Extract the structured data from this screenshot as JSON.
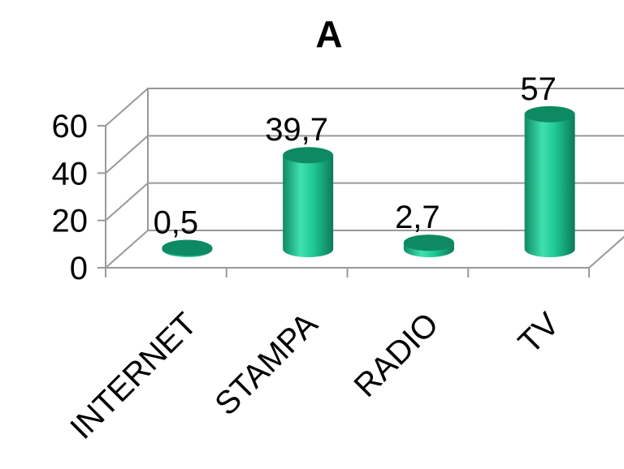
{
  "chart_data": {
    "type": "bar",
    "style": "3d-cylinder",
    "title": "A",
    "categories": [
      "INTERNET",
      "STAMPA",
      "RADIO",
      "TV"
    ],
    "values": [
      0.5,
      39.7,
      2.7,
      57
    ],
    "data_labels": [
      "0,5",
      "39,7",
      "2,7",
      "57"
    ],
    "ylim": [
      0,
      60
    ],
    "yticks": [
      "0",
      "20",
      "40",
      "60"
    ],
    "grid": true,
    "legend": "none",
    "colors": {
      "bar": "#1fbf8f",
      "bar_light": "#3fe0b0",
      "bar_dark": "#0e8a63",
      "grid": "#999999"
    }
  }
}
